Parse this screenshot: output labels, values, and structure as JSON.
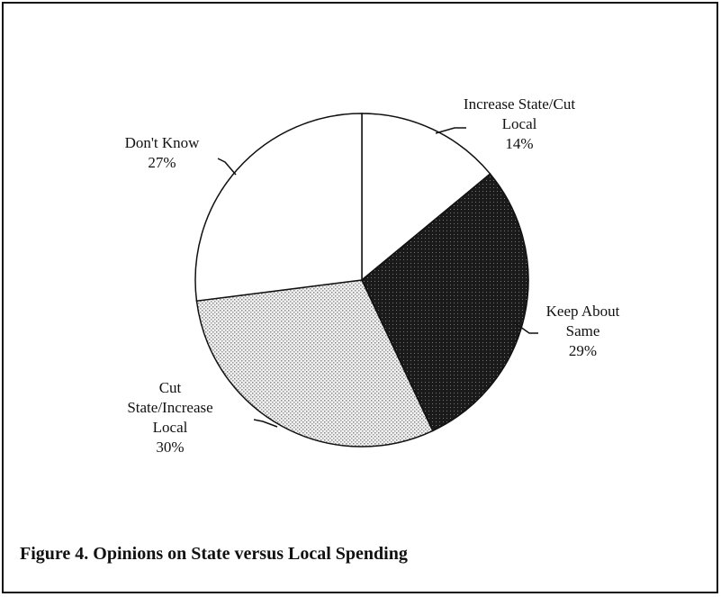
{
  "chart_data": {
    "type": "pie",
    "caption": "Figure 4. Opinions on State versus Local Spending",
    "categories": [
      "Increase State/Cut Local",
      "Keep About Same",
      "Cut State/Increase Local",
      "Don't Know"
    ],
    "values": [
      14,
      29,
      30,
      27
    ],
    "value_labels": [
      "14%",
      "29%",
      "30%",
      "27%"
    ],
    "colors": [
      "#ffffff",
      "#1a1a1a",
      "#d8d8d8",
      "#ffffff"
    ]
  }
}
